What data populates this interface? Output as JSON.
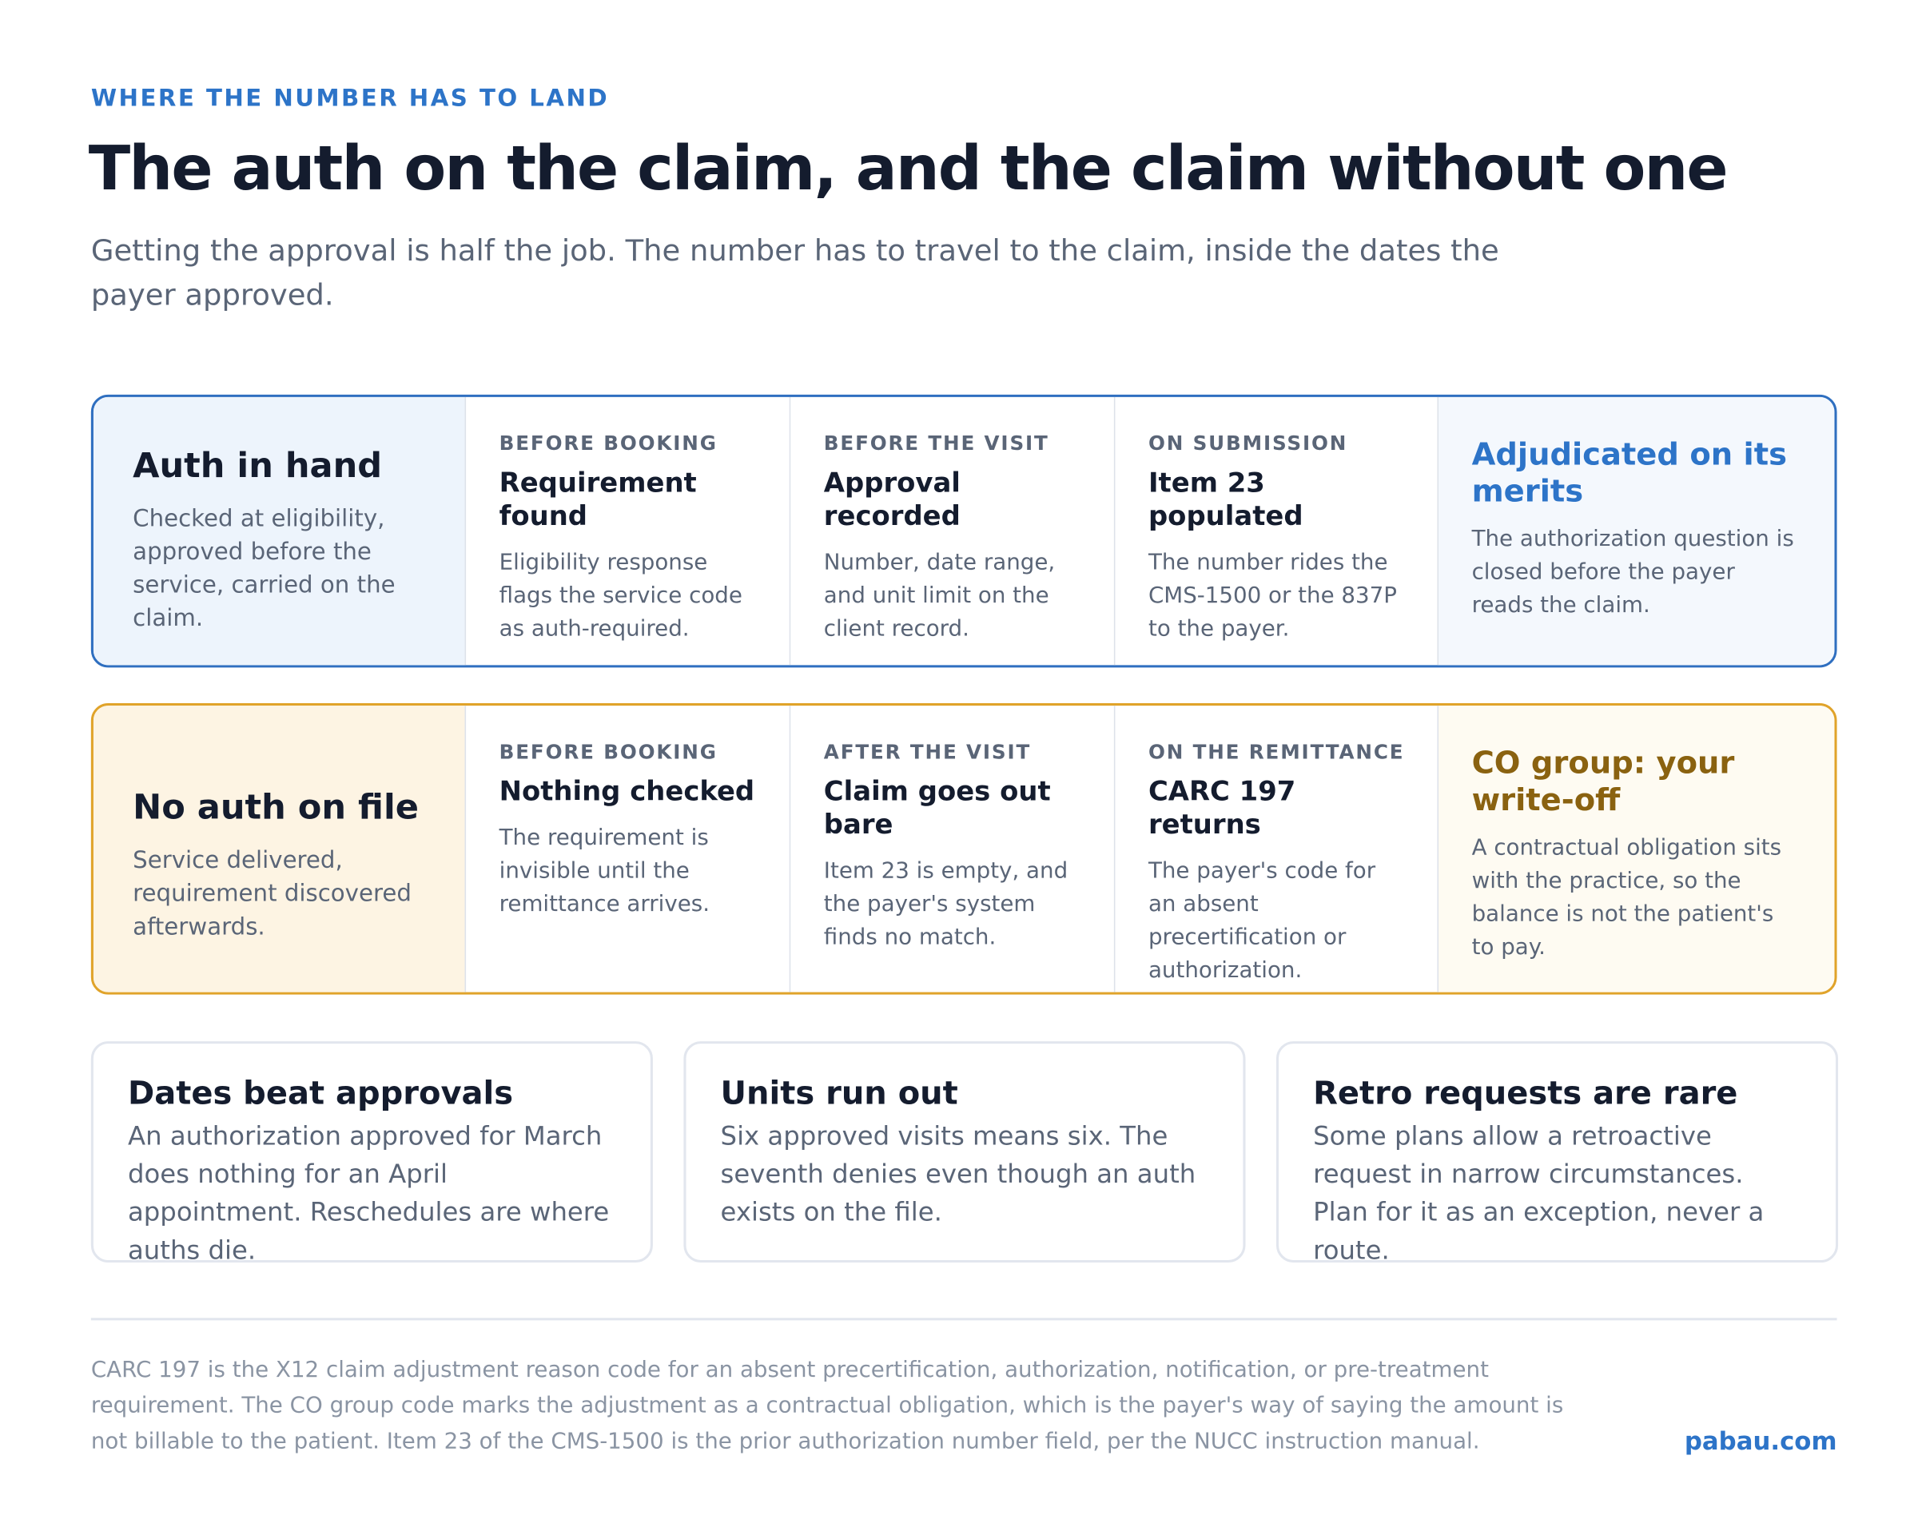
{
  "header": {
    "eyebrow": "WHERE THE NUMBER HAS TO LAND",
    "title": "The auth on the claim, and the claim without one",
    "subtitle": "Getting the approval is half the job. The number has to travel to the claim, inside the dates the payer approved."
  },
  "rows": [
    {
      "title": "Auth in hand",
      "desc": "Checked at eligibility, approved before the service, carried on the claim.",
      "steps": [
        {
          "stage": "BEFORE BOOKING",
          "title": "Requirement found",
          "desc": "Eligibility response flags the service code as auth-required."
        },
        {
          "stage": "BEFORE THE VISIT",
          "title": "Approval recorded",
          "desc": "Number, date range, and unit limit on the client record."
        },
        {
          "stage": "ON SUBMISSION",
          "title": "Item 23 populated",
          "desc": "The number rides the CMS-1500 or the 837P to the payer."
        }
      ],
      "outcome": {
        "title": "Adjudicated on its merits",
        "desc": "The authorization question is closed before the payer reads the claim."
      }
    },
    {
      "title": "No auth on file",
      "desc": "Service delivered, requirement discovered afterwards.",
      "steps": [
        {
          "stage": "BEFORE BOOKING",
          "title": "Nothing checked",
          "desc": "The requirement is invisible until the remittance arrives."
        },
        {
          "stage": "AFTER THE VISIT",
          "title": "Claim goes out bare",
          "desc": "Item 23 is empty, and the payer's system finds no match."
        },
        {
          "stage": "ON THE REMITTANCE",
          "title": "CARC 197 returns",
          "desc": "The payer's code for an absent precertification or authorization."
        }
      ],
      "outcome": {
        "title": "CO group: your write-off",
        "desc": "A contractual obligation sits with the practice, so the balance is not the patient's to pay."
      }
    }
  ],
  "notes": [
    {
      "title": "Dates beat approvals",
      "body": "An authorization approved for March does nothing for an April appointment. Reschedules are where auths die."
    },
    {
      "title": "Units run out",
      "body": "Six approved visits means six. The seventh denies even though an auth exists on the file."
    },
    {
      "title": "Retro requests are rare",
      "body": "Some plans allow a retroactive request in narrow circumstances. Plan for it as an exception, never a route."
    }
  ],
  "footer": {
    "note": "CARC 197 is the X12 claim adjustment reason code for an absent precertification, authorization, notification, or pre-treatment requirement. The CO group code marks the adjustment as a contractual obligation, which is the payer's way of saying the amount is not billable to the patient. Item 23 of the CMS-1500 is the prior authorization number field, per the NUCC instruction manual.",
    "brand": "pabau.com"
  }
}
